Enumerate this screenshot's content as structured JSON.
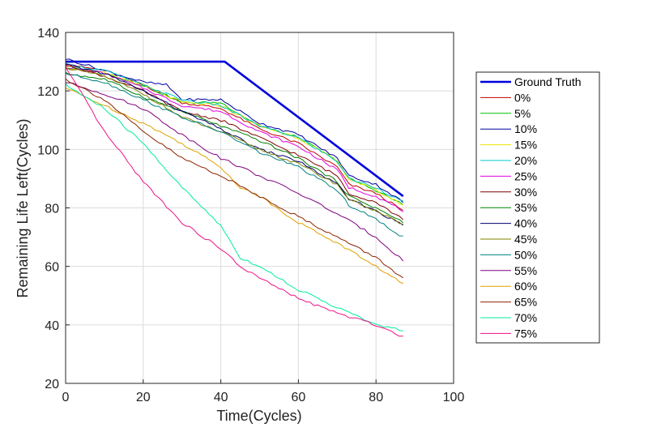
{
  "chart_data": {
    "type": "line",
    "title": "",
    "xlabel": "Time(Cycles)",
    "ylabel": "Remaining Life Left(Cycles)",
    "xlim": [
      0,
      100
    ],
    "ylim": [
      20,
      140
    ],
    "xticks": [
      0,
      20,
      40,
      60,
      80,
      100
    ],
    "yticks": [
      20,
      40,
      60,
      80,
      100,
      120,
      140
    ],
    "grid": true,
    "legend_position": "outside-right",
    "series": [
      {
        "name": "Ground Truth",
        "color": "#0000dd",
        "width": 2.6,
        "points": [
          [
            0,
            130
          ],
          [
            41,
            130
          ],
          [
            87,
            84
          ]
        ]
      },
      {
        "name": "0%",
        "color": "#c00000",
        "width": 1,
        "points": [
          [
            0,
            129
          ],
          [
            10,
            127
          ],
          [
            20,
            122
          ],
          [
            30,
            116
          ],
          [
            40,
            114
          ],
          [
            50,
            107
          ],
          [
            60,
            102
          ],
          [
            70,
            94
          ],
          [
            73,
            88
          ],
          [
            80,
            85
          ],
          [
            87,
            79
          ]
        ]
      },
      {
        "name": "5%",
        "color": "#00c000",
        "width": 1,
        "points": [
          [
            0,
            128
          ],
          [
            10,
            126
          ],
          [
            20,
            122
          ],
          [
            30,
            116
          ],
          [
            40,
            116
          ],
          [
            50,
            108
          ],
          [
            60,
            104
          ],
          [
            70,
            96
          ],
          [
            73,
            90
          ],
          [
            80,
            86
          ],
          [
            87,
            81
          ]
        ]
      },
      {
        "name": "10%",
        "color": "#0000a0",
        "width": 1,
        "points": [
          [
            0,
            131
          ],
          [
            10,
            127
          ],
          [
            20,
            123
          ],
          [
            26,
            122
          ],
          [
            30,
            117
          ],
          [
            40,
            117
          ],
          [
            50,
            109
          ],
          [
            60,
            105
          ],
          [
            70,
            97
          ],
          [
            73,
            91
          ],
          [
            80,
            88
          ],
          [
            87,
            82
          ]
        ]
      },
      {
        "name": "15%",
        "color": "#e6e600",
        "width": 1,
        "points": [
          [
            0,
            128
          ],
          [
            10,
            126
          ],
          [
            20,
            122
          ],
          [
            30,
            116
          ],
          [
            40,
            115
          ],
          [
            50,
            108
          ],
          [
            60,
            104
          ],
          [
            70,
            96
          ],
          [
            73,
            90
          ],
          [
            80,
            86
          ],
          [
            87,
            81
          ]
        ]
      },
      {
        "name": "20%",
        "color": "#00c8c8",
        "width": 1,
        "points": [
          [
            0,
            129
          ],
          [
            10,
            127
          ],
          [
            20,
            122
          ],
          [
            30,
            117
          ],
          [
            40,
            115
          ],
          [
            50,
            108
          ],
          [
            60,
            104
          ],
          [
            70,
            96
          ],
          [
            73,
            90
          ],
          [
            80,
            87
          ],
          [
            87,
            82
          ]
        ]
      },
      {
        "name": "25%",
        "color": "#e000e0",
        "width": 1,
        "points": [
          [
            0,
            128
          ],
          [
            10,
            126
          ],
          [
            20,
            121
          ],
          [
            30,
            115
          ],
          [
            40,
            113
          ],
          [
            50,
            106
          ],
          [
            60,
            101
          ],
          [
            70,
            93
          ],
          [
            73,
            87
          ],
          [
            80,
            84
          ],
          [
            87,
            79
          ]
        ]
      },
      {
        "name": "30%",
        "color": "#800000",
        "width": 1,
        "points": [
          [
            0,
            129
          ],
          [
            10,
            125
          ],
          [
            20,
            120
          ],
          [
            30,
            113
          ],
          [
            40,
            110
          ],
          [
            50,
            104
          ],
          [
            60,
            98
          ],
          [
            70,
            91
          ],
          [
            73,
            85
          ],
          [
            80,
            82
          ],
          [
            87,
            76
          ]
        ]
      },
      {
        "name": "35%",
        "color": "#008000",
        "width": 1,
        "points": [
          [
            0,
            126
          ],
          [
            10,
            124
          ],
          [
            20,
            118
          ],
          [
            30,
            113
          ],
          [
            40,
            108
          ],
          [
            50,
            103
          ],
          [
            60,
            97
          ],
          [
            70,
            89
          ],
          [
            73,
            84
          ],
          [
            80,
            80
          ],
          [
            87,
            75
          ]
        ]
      },
      {
        "name": "40%",
        "color": "#000070",
        "width": 1,
        "points": [
          [
            0,
            129
          ],
          [
            10,
            126
          ],
          [
            20,
            120
          ],
          [
            30,
            113
          ],
          [
            40,
            107
          ],
          [
            50,
            100
          ],
          [
            60,
            96
          ],
          [
            70,
            88
          ],
          [
            73,
            83
          ],
          [
            80,
            79
          ],
          [
            87,
            74
          ]
        ]
      },
      {
        "name": "45%",
        "color": "#808000",
        "width": 1,
        "points": [
          [
            0,
            128
          ],
          [
            10,
            125
          ],
          [
            20,
            119
          ],
          [
            30,
            111
          ],
          [
            40,
            106
          ],
          [
            50,
            100
          ],
          [
            60,
            95
          ],
          [
            70,
            88
          ],
          [
            73,
            83
          ],
          [
            80,
            79
          ],
          [
            87,
            74
          ]
        ]
      },
      {
        "name": "50%",
        "color": "#008080",
        "width": 1,
        "points": [
          [
            0,
            126
          ],
          [
            10,
            123
          ],
          [
            20,
            117
          ],
          [
            30,
            111
          ],
          [
            40,
            106
          ],
          [
            50,
            99
          ],
          [
            60,
            94
          ],
          [
            70,
            86
          ],
          [
            73,
            81
          ],
          [
            80,
            76
          ],
          [
            87,
            70
          ]
        ]
      },
      {
        "name": "55%",
        "color": "#800080",
        "width": 1,
        "points": [
          [
            0,
            123
          ],
          [
            10,
            119
          ],
          [
            20,
            114
          ],
          [
            30,
            105
          ],
          [
            40,
            97
          ],
          [
            50,
            91
          ],
          [
            60,
            85
          ],
          [
            70,
            78
          ],
          [
            80,
            70
          ],
          [
            87,
            62
          ]
        ]
      },
      {
        "name": "60%",
        "color": "#e0a000",
        "width": 1,
        "points": [
          [
            0,
            121
          ],
          [
            10,
            115
          ],
          [
            20,
            109
          ],
          [
            30,
            102
          ],
          [
            40,
            94
          ],
          [
            45,
            87
          ],
          [
            50,
            84
          ],
          [
            60,
            75
          ],
          [
            70,
            68
          ],
          [
            80,
            60
          ],
          [
            87,
            54
          ]
        ]
      },
      {
        "name": "65%",
        "color": "#8b2500",
        "width": 1,
        "points": [
          [
            0,
            124
          ],
          [
            10,
            117
          ],
          [
            20,
            106
          ],
          [
            30,
            97
          ],
          [
            40,
            91
          ],
          [
            50,
            84
          ],
          [
            60,
            77
          ],
          [
            70,
            70
          ],
          [
            80,
            63
          ],
          [
            87,
            56
          ]
        ]
      },
      {
        "name": "70%",
        "color": "#00ee99",
        "width": 1,
        "points": [
          [
            0,
            122
          ],
          [
            10,
            114
          ],
          [
            20,
            102
          ],
          [
            30,
            87
          ],
          [
            40,
            74
          ],
          [
            45,
            63
          ],
          [
            50,
            60
          ],
          [
            60,
            52
          ],
          [
            70,
            46
          ],
          [
            80,
            40
          ],
          [
            87,
            38
          ]
        ]
      },
      {
        "name": "75%",
        "color": "#ee1188",
        "width": 1,
        "points": [
          [
            0,
            128
          ],
          [
            10,
            106
          ],
          [
            20,
            89
          ],
          [
            30,
            75
          ],
          [
            40,
            66
          ],
          [
            45,
            60
          ],
          [
            50,
            56
          ],
          [
            60,
            49
          ],
          [
            70,
            44
          ],
          [
            80,
            40
          ],
          [
            87,
            36
          ]
        ]
      }
    ]
  }
}
